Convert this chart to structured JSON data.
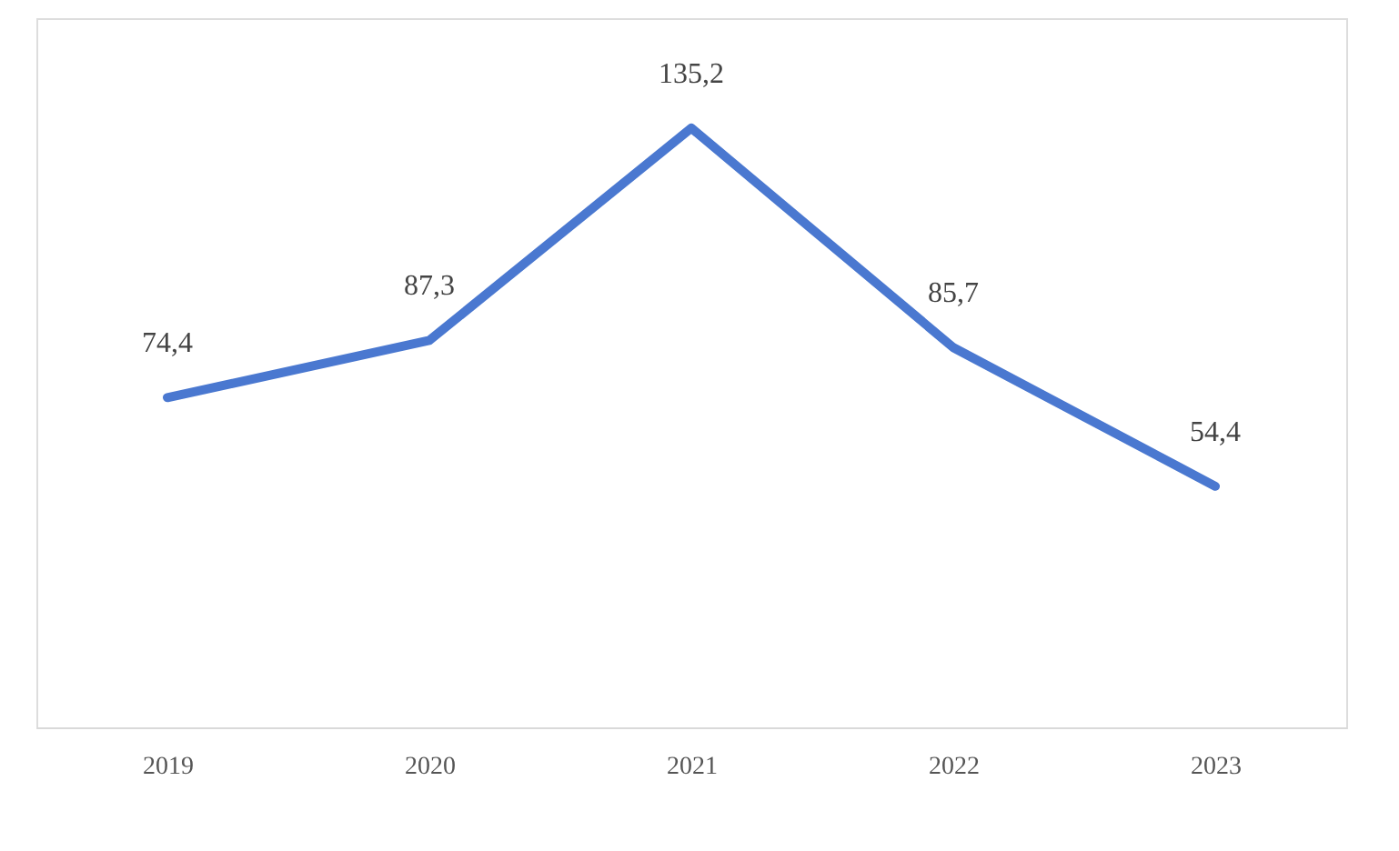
{
  "chart_data": {
    "type": "line",
    "categories": [
      "2019",
      "2020",
      "2021",
      "2022",
      "2023"
    ],
    "series": [
      {
        "color": "#4a78d0",
        "values": [
          74.4,
          87.3,
          135.2,
          85.7,
          54.4
        ],
        "value_labels": [
          "74,4",
          "87,3",
          "135,2",
          "85,7",
          "54,4"
        ]
      }
    ],
    "ylim": [
      0,
      160
    ],
    "tick_labels": "x",
    "grid": false,
    "marker": "none",
    "line_style": "solid"
  }
}
